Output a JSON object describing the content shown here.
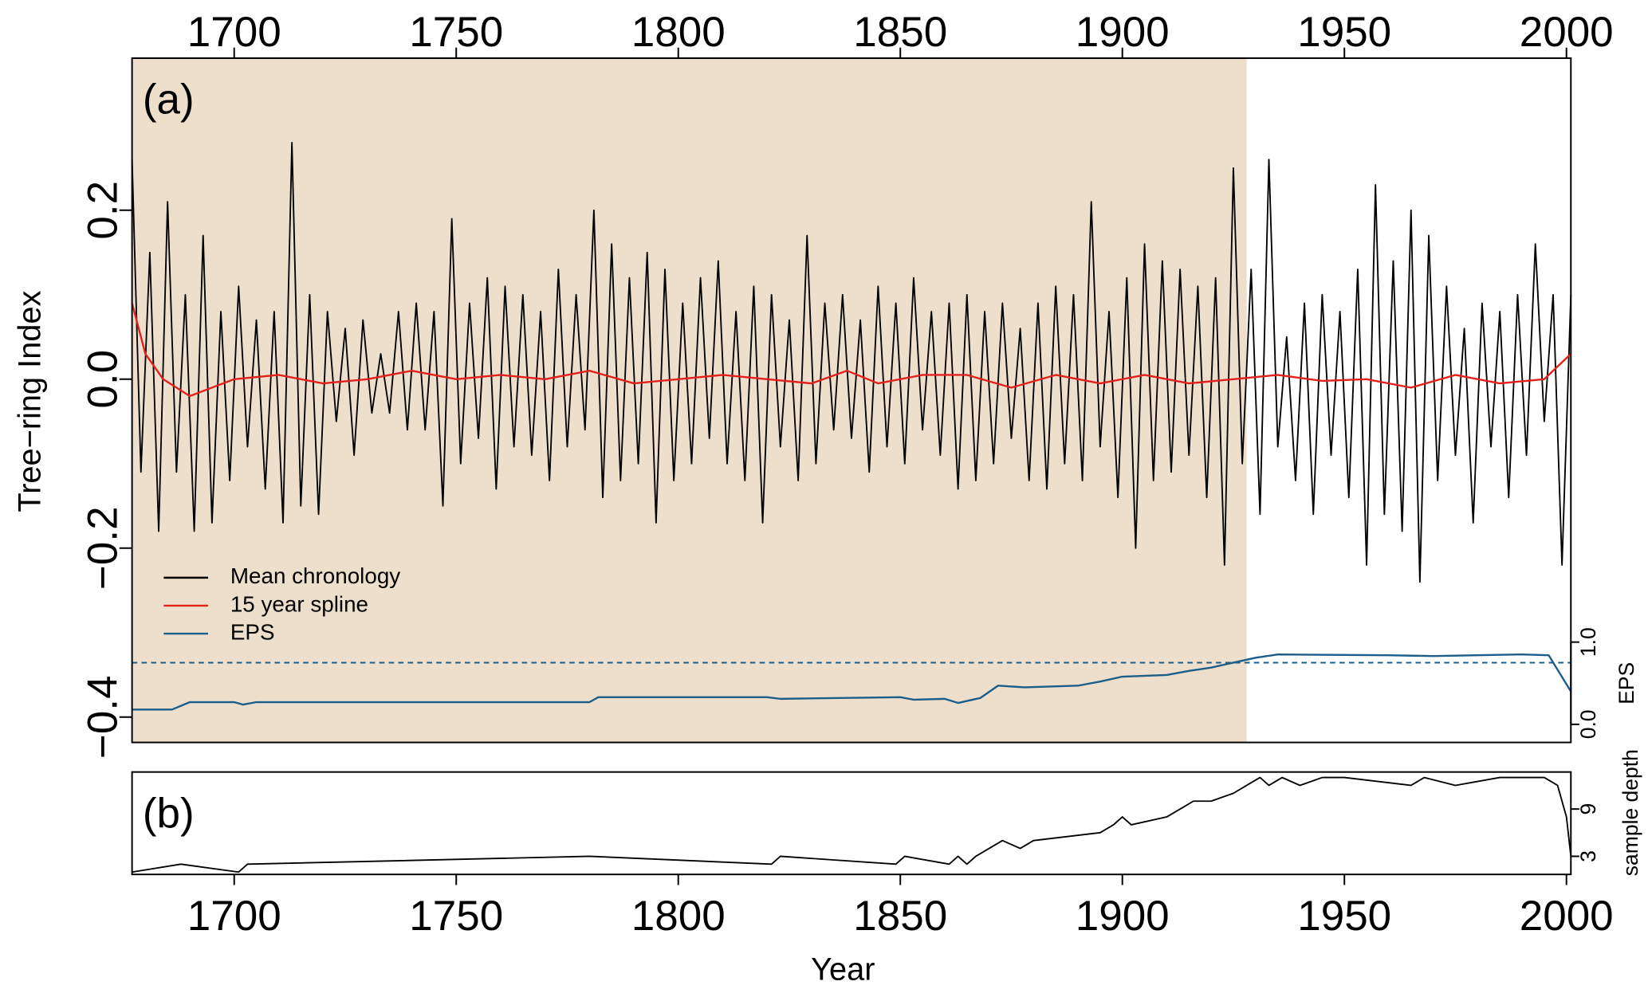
{
  "chart_data": [
    {
      "type": "line",
      "label": "(a)",
      "ylabel": "Tree−ring Index",
      "y2label": "EPS",
      "xlim": [
        1677,
        2001
      ],
      "xticks": [
        1700,
        1750,
        1800,
        1850,
        1900,
        1950,
        2000
      ],
      "ylim": [
        -0.43,
        0.38
      ],
      "yticks": [
        {
          "value": -0.4,
          "label": "−0.4"
        },
        {
          "value": -0.2,
          "label": "−0.2"
        },
        {
          "value": 0,
          "label": "0.0"
        },
        {
          "value": 0.2,
          "label": "0.2"
        }
      ],
      "y2lim": [
        -0.22,
        8.1
      ],
      "y2ticks": [
        {
          "value": 0,
          "label": "0.0"
        },
        {
          "value": 1,
          "label": "1.0"
        }
      ],
      "shaded_period": [
        1677,
        1928
      ],
      "shade_color": "#eedfcc",
      "eps_threshold": 0.75,
      "legend": "lower left",
      "series": [
        {
          "name": "Mean chronology",
          "color": "#000000",
          "x": [
            1677,
            1679,
            1681,
            1683,
            1685,
            1687,
            1689,
            1691,
            1693,
            1695,
            1697,
            1699,
            1701,
            1703,
            1705,
            1707,
            1709,
            1711,
            1713,
            1715,
            1717,
            1719,
            1721,
            1723,
            1725,
            1727,
            1729,
            1731,
            1733,
            1735,
            1737,
            1739,
            1741,
            1743,
            1745,
            1747,
            1749,
            1751,
            1753,
            1755,
            1757,
            1759,
            1761,
            1763,
            1765,
            1767,
            1769,
            1771,
            1773,
            1775,
            1777,
            1779,
            1781,
            1783,
            1785,
            1787,
            1789,
            1791,
            1793,
            1795,
            1797,
            1799,
            1801,
            1803,
            1805,
            1807,
            1809,
            1811,
            1813,
            1815,
            1817,
            1819,
            1821,
            1823,
            1825,
            1827,
            1829,
            1831,
            1833,
            1835,
            1837,
            1839,
            1841,
            1843,
            1845,
            1847,
            1849,
            1851,
            1853,
            1855,
            1857,
            1859,
            1861,
            1863,
            1865,
            1867,
            1869,
            1871,
            1873,
            1875,
            1877,
            1879,
            1881,
            1883,
            1885,
            1887,
            1889,
            1891,
            1893,
            1895,
            1897,
            1899,
            1901,
            1903,
            1905,
            1907,
            1909,
            1911,
            1913,
            1915,
            1917,
            1919,
            1921,
            1923,
            1925,
            1927,
            1929,
            1931,
            1933,
            1935,
            1937,
            1939,
            1941,
            1943,
            1945,
            1947,
            1949,
            1951,
            1953,
            1955,
            1957,
            1959,
            1961,
            1963,
            1965,
            1967,
            1969,
            1971,
            1973,
            1975,
            1977,
            1979,
            1981,
            1983,
            1985,
            1987,
            1989,
            1991,
            1993,
            1995,
            1997,
            1999,
            2001
          ],
          "values": [
            0.26,
            -0.11,
            0.15,
            -0.18,
            0.21,
            -0.11,
            0.1,
            -0.18,
            0.17,
            -0.17,
            0.08,
            -0.12,
            0.11,
            -0.08,
            0.07,
            -0.13,
            0.08,
            -0.17,
            0.28,
            -0.15,
            0.1,
            -0.16,
            0.08,
            -0.05,
            0.06,
            -0.09,
            0.07,
            -0.04,
            0.03,
            -0.04,
            0.08,
            -0.06,
            0.09,
            -0.06,
            0.08,
            -0.15,
            0.19,
            -0.1,
            0.09,
            -0.07,
            0.12,
            -0.13,
            0.11,
            -0.08,
            0.1,
            -0.09,
            0.08,
            -0.12,
            0.13,
            -0.08,
            0.1,
            -0.06,
            0.2,
            -0.14,
            0.16,
            -0.12,
            0.12,
            -0.1,
            0.15,
            -0.17,
            0.13,
            -0.12,
            0.09,
            -0.1,
            0.12,
            -0.07,
            0.14,
            -0.1,
            0.08,
            -0.12,
            0.11,
            -0.17,
            0.1,
            -0.08,
            0.07,
            -0.12,
            0.17,
            -0.1,
            0.09,
            -0.06,
            0.1,
            -0.07,
            0.07,
            -0.11,
            0.11,
            -0.08,
            0.09,
            -0.1,
            0.12,
            -0.06,
            0.08,
            -0.09,
            0.09,
            -0.13,
            0.1,
            -0.12,
            0.08,
            -0.1,
            0.09,
            -0.07,
            0.06,
            -0.12,
            0.09,
            -0.13,
            0.11,
            -0.1,
            0.1,
            -0.12,
            0.21,
            -0.08,
            0.08,
            -0.14,
            0.12,
            -0.2,
            0.16,
            -0.12,
            0.14,
            -0.11,
            0.13,
            -0.09,
            0.11,
            -0.14,
            0.12,
            -0.22,
            0.25,
            -0.1,
            0.13,
            -0.16,
            0.26,
            -0.08,
            0.05,
            -0.12,
            0.09,
            -0.16,
            0.1,
            -0.09,
            0.08,
            -0.14,
            0.13,
            -0.22,
            0.23,
            -0.16,
            0.14,
            -0.18,
            0.2,
            -0.24,
            0.17,
            -0.12,
            0.11,
            -0.09,
            0.06,
            -0.17,
            0.09,
            -0.08,
            0.08,
            -0.14,
            0.1,
            -0.09,
            0.16,
            -0.05,
            0.1,
            -0.22,
            0.1
          ]
        },
        {
          "name": "15 year spline",
          "color": "#e3211c",
          "x": [
            1677,
            1680,
            1684,
            1690,
            1700,
            1710,
            1720,
            1730,
            1740,
            1750,
            1760,
            1770,
            1780,
            1790,
            1800,
            1810,
            1820,
            1830,
            1838,
            1845,
            1855,
            1865,
            1875,
            1885,
            1895,
            1905,
            1915,
            1925,
            1935,
            1945,
            1955,
            1965,
            1975,
            1985,
            1995,
            2001
          ],
          "values": [
            0.09,
            0.03,
            0.0,
            -0.02,
            0.0,
            0.005,
            -0.005,
            0.0,
            0.01,
            0.0,
            0.005,
            0.0,
            0.01,
            -0.005,
            0.0,
            0.005,
            0.0,
            -0.005,
            0.01,
            -0.005,
            0.005,
            0.005,
            -0.01,
            0.005,
            -0.005,
            0.005,
            -0.005,
            0.0,
            0.005,
            -0.002,
            0.0,
            -0.01,
            0.005,
            -0.005,
            0.0,
            0.03
          ]
        },
        {
          "name": "EPS",
          "color": "#1b5e8a",
          "axis": "y2",
          "x": [
            1677,
            1686,
            1690,
            1700,
            1702,
            1705,
            1780,
            1782,
            1820,
            1823,
            1850,
            1853,
            1860,
            1863,
            1868,
            1872,
            1878,
            1890,
            1895,
            1900,
            1910,
            1915,
            1920,
            1925,
            1930,
            1935,
            1960,
            1970,
            1990,
            1996,
            2001
          ],
          "values": [
            0.18,
            0.18,
            0.27,
            0.27,
            0.24,
            0.27,
            0.27,
            0.33,
            0.33,
            0.31,
            0.33,
            0.3,
            0.31,
            0.26,
            0.32,
            0.47,
            0.45,
            0.47,
            0.52,
            0.58,
            0.6,
            0.65,
            0.69,
            0.75,
            0.81,
            0.85,
            0.84,
            0.83,
            0.85,
            0.84,
            0.4
          ]
        }
      ]
    },
    {
      "type": "line",
      "label": "(b)",
      "xlabel": "Year",
      "y2label": "sample depth",
      "xlim": [
        1677,
        2001
      ],
      "xticks": [
        1700,
        1750,
        1800,
        1850,
        1900,
        1950,
        2000
      ],
      "y2lim": [
        0.7,
        13.7
      ],
      "y2ticks": [
        3,
        9
      ],
      "series": [
        {
          "color": "#000000",
          "axis": "y2",
          "x": [
            1677,
            1688,
            1701,
            1703,
            1780,
            1821,
            1823,
            1849,
            1851,
            1861,
            1863,
            1865,
            1867,
            1870,
            1873,
            1877,
            1880,
            1895,
            1898,
            1900,
            1902,
            1910,
            1913,
            1916,
            1920,
            1925,
            1928,
            1931,
            1933,
            1936,
            1940,
            1945,
            1950,
            1965,
            1968,
            1975,
            1985,
            1995,
            1998,
            2000,
            2001
          ],
          "values": [
            1,
            2,
            1,
            2,
            3,
            2,
            3,
            2,
            3,
            2,
            3,
            2,
            3,
            4,
            5,
            4,
            5,
            6,
            7,
            8,
            7,
            8,
            9,
            10,
            10,
            11,
            12,
            13,
            12,
            13,
            12,
            13,
            13,
            12,
            13,
            12,
            13,
            13,
            12,
            8,
            3
          ]
        }
      ]
    }
  ]
}
